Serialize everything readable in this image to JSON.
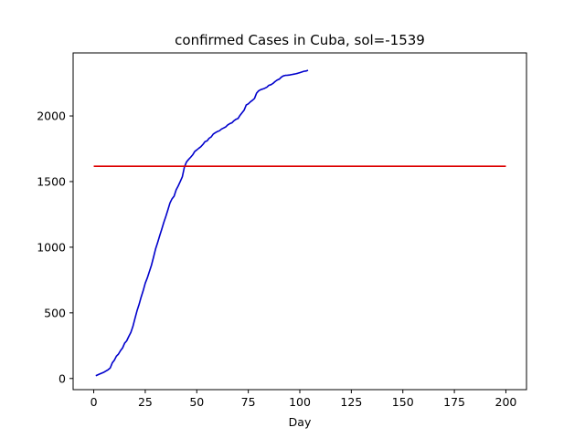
{
  "chart_data": {
    "type": "line",
    "title": "confirmed Cases in Cuba, sol=-1539",
    "xlabel": "Day",
    "ylabel": "",
    "xlim": [
      -10,
      210
    ],
    "ylim": [
      -85,
      2480
    ],
    "xticks": [
      0,
      25,
      50,
      75,
      100,
      125,
      150,
      175,
      200
    ],
    "yticks": [
      0,
      500,
      1000,
      1500,
      2000
    ],
    "grid": false,
    "series": [
      {
        "color": "#0000cc",
        "points": [
          [
            1,
            21
          ],
          [
            3,
            35
          ],
          [
            5,
            48
          ],
          [
            7,
            67
          ],
          [
            8,
            80
          ],
          [
            9,
            119
          ],
          [
            10,
            139
          ],
          [
            11,
            170
          ],
          [
            12,
            186
          ],
          [
            13,
            212
          ],
          [
            14,
            233
          ],
          [
            15,
            269
          ],
          [
            16,
            287
          ],
          [
            17,
            320
          ],
          [
            18,
            350
          ],
          [
            19,
            396
          ],
          [
            20,
            457
          ],
          [
            21,
            515
          ],
          [
            22,
            564
          ],
          [
            23,
            620
          ],
          [
            24,
            669
          ],
          [
            25,
            726
          ],
          [
            26,
            766
          ],
          [
            27,
            814
          ],
          [
            28,
            862
          ],
          [
            29,
            923
          ],
          [
            30,
            986
          ],
          [
            31,
            1035
          ],
          [
            32,
            1087
          ],
          [
            33,
            1137
          ],
          [
            34,
            1189
          ],
          [
            35,
            1235
          ],
          [
            36,
            1285
          ],
          [
            37,
            1337
          ],
          [
            38,
            1369
          ],
          [
            39,
            1389
          ],
          [
            40,
            1437
          ],
          [
            41,
            1467
          ],
          [
            42,
            1501
          ],
          [
            43,
            1537
          ],
          [
            44,
            1611
          ],
          [
            45,
            1649
          ],
          [
            46,
            1668
          ],
          [
            47,
            1685
          ],
          [
            48,
            1703
          ],
          [
            49,
            1729
          ],
          [
            50,
            1741
          ],
          [
            51,
            1754
          ],
          [
            52,
            1766
          ],
          [
            53,
            1783
          ],
          [
            54,
            1804
          ],
          [
            55,
            1810
          ],
          [
            56,
            1830
          ],
          [
            57,
            1840
          ],
          [
            58,
            1862
          ],
          [
            59,
            1872
          ],
          [
            60,
            1881
          ],
          [
            61,
            1887
          ],
          [
            62,
            1900
          ],
          [
            63,
            1908
          ],
          [
            64,
            1916
          ],
          [
            65,
            1931
          ],
          [
            66,
            1941
          ],
          [
            67,
            1947
          ],
          [
            68,
            1963
          ],
          [
            69,
            1974
          ],
          [
            70,
            1980
          ],
          [
            71,
            2005
          ],
          [
            72,
            2025
          ],
          [
            73,
            2045
          ],
          [
            74,
            2083
          ],
          [
            75,
            2092
          ],
          [
            76,
            2107
          ],
          [
            77,
            2119
          ],
          [
            78,
            2133
          ],
          [
            79,
            2173
          ],
          [
            80,
            2191
          ],
          [
            81,
            2200
          ],
          [
            82,
            2205
          ],
          [
            83,
            2211
          ],
          [
            84,
            2219
          ],
          [
            85,
            2233
          ],
          [
            86,
            2238
          ],
          [
            87,
            2248
          ],
          [
            88,
            2262
          ],
          [
            89,
            2273
          ],
          [
            90,
            2280
          ],
          [
            91,
            2295
          ],
          [
            92,
            2305
          ],
          [
            93,
            2309
          ],
          [
            94,
            2310
          ],
          [
            95,
            2312
          ],
          [
            96,
            2315
          ],
          [
            97,
            2318
          ],
          [
            98,
            2321
          ],
          [
            99,
            2325
          ],
          [
            100,
            2330
          ],
          [
            101,
            2335
          ],
          [
            102,
            2340
          ],
          [
            103,
            2342
          ],
          [
            104,
            2348
          ]
        ]
      },
      {
        "color": "#dd0000",
        "points": [
          [
            0,
            1617
          ],
          [
            200,
            1617
          ]
        ]
      }
    ]
  }
}
